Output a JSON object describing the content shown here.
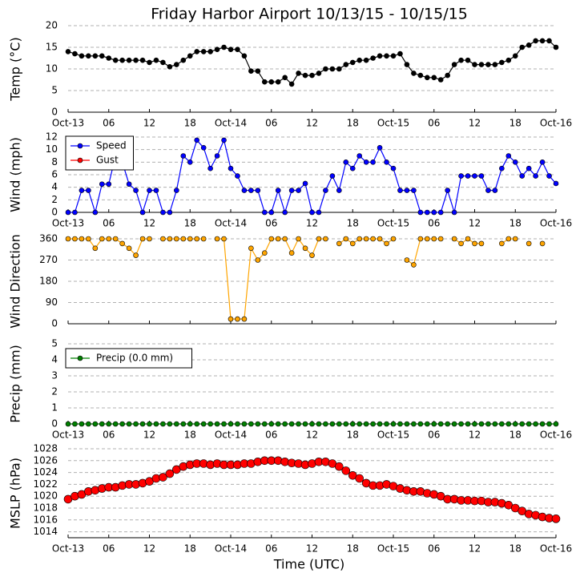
{
  "title": "Friday Harbor Airport 10/13/15 - 10/15/15",
  "x_axis": {
    "label": "Time (UTC)",
    "xlim": [
      0,
      72
    ],
    "xticks": [
      {
        "value": 0,
        "label": "Oct-13"
      },
      {
        "value": 6,
        "label": "06"
      },
      12,
      18,
      {
        "value": 24,
        "label": "Oct-14"
      },
      {
        "value": 30,
        "label": "06"
      },
      {
        "value": 36,
        "label": "12"
      },
      {
        "value": 42,
        "label": "18"
      },
      {
        "value": 48,
        "label": "Oct-15"
      },
      {
        "value": 54,
        "label": "06"
      },
      {
        "value": 60,
        "label": "12"
      },
      {
        "value": 66,
        "label": "18"
      },
      {
        "value": 72,
        "label": "Oct-16"
      }
    ],
    "x": [
      0,
      1,
      2,
      3,
      4,
      5,
      6,
      7,
      8,
      9,
      10,
      11,
      12,
      13,
      14,
      15,
      16,
      17,
      18,
      19,
      20,
      21,
      22,
      23,
      24,
      25,
      26,
      27,
      28,
      29,
      30,
      31,
      32,
      33,
      34,
      35,
      36,
      37,
      38,
      39,
      40,
      41,
      42,
      43,
      44,
      45,
      46,
      47,
      48,
      49,
      50,
      51,
      52,
      53,
      54,
      55,
      56,
      57,
      58,
      59,
      60,
      61,
      62,
      63,
      64,
      65,
      66,
      67,
      68,
      69,
      70,
      71,
      72
    ]
  },
  "chart_data": [
    {
      "type": "line",
      "ylabel": "Temp (°C)",
      "ylim": [
        0,
        20
      ],
      "yticks": [
        0,
        5,
        10,
        15,
        20
      ],
      "grid": true,
      "series": [
        {
          "color": "#000000",
          "values": [
            14,
            13.5,
            13,
            13,
            13,
            13,
            12.5,
            12,
            12,
            12,
            12,
            12,
            11.5,
            12,
            11.5,
            10.5,
            11,
            12,
            13,
            14,
            14,
            14,
            14.5,
            15,
            14.5,
            14.5,
            13,
            9.5,
            9.5,
            7,
            7,
            7,
            8,
            6.5,
            9,
            8.5,
            8.5,
            9,
            10,
            10,
            10,
            11,
            11.5,
            12,
            12,
            12.5,
            13,
            13,
            13,
            13.5,
            11,
            9,
            8.5,
            8,
            8,
            7.5,
            8.5,
            11,
            12,
            12,
            11,
            11,
            11,
            11,
            11.5,
            12,
            13,
            15,
            15.5,
            16.5,
            16.5,
            16.5,
            15
          ]
        }
      ]
    },
    {
      "type": "line",
      "ylabel": "Wind (mph)",
      "ylim": [
        0,
        12
      ],
      "yticks": [
        0,
        2,
        4,
        6,
        8,
        10,
        12
      ],
      "grid": true,
      "legend": "upper left",
      "series": [
        {
          "name": "Speed",
          "color": "#0000ff",
          "values": [
            0,
            0,
            3.5,
            3.5,
            0,
            4.5,
            4.5,
            9,
            8,
            4.5,
            3.5,
            0,
            3.5,
            3.5,
            0,
            0,
            3.5,
            9,
            8,
            11.5,
            10.3,
            7,
            9,
            11.5,
            7,
            5.8,
            3.5,
            3.5,
            3.5,
            0,
            0,
            3.5,
            0,
            3.5,
            3.5,
            4.6,
            0,
            0,
            3.5,
            5.8,
            3.5,
            8,
            7,
            9,
            8,
            8,
            10.3,
            8,
            7,
            3.5,
            3.5,
            3.5,
            0,
            0,
            0,
            0,
            3.5,
            0,
            5.8,
            5.8,
            5.8,
            5.8,
            3.5,
            3.5,
            7,
            9,
            8,
            5.8,
            7,
            5.8,
            8,
            5.8,
            4.6
          ]
        },
        {
          "name": "Gust",
          "color": "#ff0000",
          "values": [
            null,
            null,
            null,
            null,
            null,
            null,
            null,
            null,
            null,
            null,
            null,
            null,
            null,
            null,
            null,
            null,
            null,
            null,
            null,
            null,
            null,
            null,
            null,
            null,
            null,
            null,
            null,
            null,
            null,
            null,
            null,
            null,
            null,
            null,
            null,
            null,
            null,
            null,
            null,
            null,
            null,
            null,
            null,
            null,
            null,
            null,
            null,
            null,
            null,
            null,
            null,
            null,
            null,
            null,
            null,
            null,
            null,
            null,
            null,
            null,
            null,
            null,
            null,
            null,
            null,
            null,
            null,
            null,
            null,
            null,
            null,
            null,
            null
          ]
        }
      ]
    },
    {
      "type": "line",
      "ylabel": "Wind Direction",
      "ylim": [
        0,
        360
      ],
      "yticks": [
        0,
        90,
        180,
        270,
        360
      ],
      "grid": true,
      "series": [
        {
          "color": "#ffa500",
          "values": [
            360,
            360,
            360,
            360,
            320,
            360,
            360,
            360,
            340,
            320,
            290,
            360,
            360,
            null,
            360,
            360,
            360,
            360,
            360,
            360,
            360,
            null,
            360,
            360,
            20,
            20,
            20,
            320,
            270,
            300,
            360,
            360,
            360,
            300,
            360,
            320,
            290,
            360,
            360,
            null,
            340,
            360,
            340,
            360,
            360,
            360,
            360,
            340,
            360,
            null,
            270,
            250,
            360,
            360,
            360,
            360,
            null,
            360,
            340,
            360,
            340,
            340,
            null,
            null,
            340,
            360,
            360,
            null,
            340,
            null,
            340,
            null,
            null
          ]
        }
      ]
    },
    {
      "type": "line",
      "ylabel": "Precip (mm)",
      "ylim": [
        0,
        5
      ],
      "yticks": [
        0,
        1,
        2,
        3,
        4,
        5
      ],
      "grid": true,
      "legend": "upper left",
      "series": [
        {
          "name": "Precip (0.0 mm)",
          "color": "#008000",
          "values": [
            0,
            0,
            0,
            0,
            0,
            0,
            0,
            0,
            0,
            0,
            0,
            0,
            0,
            0,
            0,
            0,
            0,
            0,
            0,
            0,
            0,
            0,
            0,
            0,
            0,
            0,
            0,
            0,
            0,
            0,
            0,
            0,
            0,
            0,
            0,
            0,
            0,
            0,
            0,
            0,
            0,
            0,
            0,
            0,
            0,
            0,
            0,
            0,
            0,
            0,
            0,
            0,
            0,
            0,
            0,
            0,
            0,
            0,
            0,
            0,
            0,
            0,
            0,
            0,
            0,
            0,
            0,
            0,
            0,
            0,
            0,
            0,
            0
          ]
        }
      ]
    },
    {
      "type": "scatter",
      "ylabel": "MSLP (hPa)",
      "ylim": [
        1013,
        1028
      ],
      "yticks": [
        1014,
        1016,
        1018,
        1020,
        1022,
        1024,
        1026,
        1028
      ],
      "grid": true,
      "series": [
        {
          "color": "#ff0000",
          "values": [
            1019.5,
            1020,
            1020.3,
            1020.8,
            1021,
            1021.3,
            1021.5,
            1021.5,
            1021.8,
            1022,
            1022,
            1022.2,
            1022.5,
            1023,
            1023.2,
            1023.8,
            1024.5,
            1025,
            1025.3,
            1025.5,
            1025.5,
            1025.3,
            1025.5,
            1025.3,
            1025.3,
            1025.3,
            1025.5,
            1025.5,
            1025.8,
            1026,
            1026,
            1026,
            1025.8,
            1025.6,
            1025.5,
            1025.3,
            1025.5,
            1025.8,
            1025.8,
            1025.5,
            1025,
            1024.3,
            1023.5,
            1023,
            1022.2,
            1021.8,
            1021.8,
            1022,
            1021.7,
            1021.3,
            1021,
            1020.8,
            1020.8,
            1020.5,
            1020.3,
            1020,
            1019.5,
            1019.5,
            1019.3,
            1019.3,
            1019.2,
            1019.2,
            1019,
            1019,
            1018.8,
            1018.5,
            1018,
            1017.5,
            1017,
            1016.8,
            1016.5,
            1016.3,
            1016.2
          ]
        }
      ]
    }
  ]
}
